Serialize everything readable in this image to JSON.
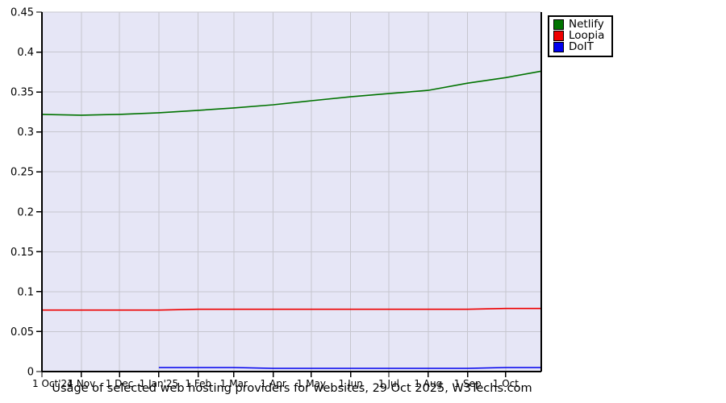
{
  "page": {
    "background": "#ffffff"
  },
  "chart_data": {
    "type": "line",
    "title": "Usage of selected web hosting providers for websites, 29 Oct 2025, W3Techs.com",
    "x_tick_labels": [
      "1 Oct'24",
      "1 Nov",
      "1 Dec",
      "1 Jan'25",
      "1 Feb",
      "1 Mar",
      "1 Apr",
      "1 May",
      "1 Jun",
      "1 Jul",
      "1 Aug",
      "1 Sep",
      "1 Oct"
    ],
    "x_days": [
      0,
      31,
      61,
      92,
      123,
      151,
      182,
      212,
      243,
      273,
      304,
      335,
      365,
      393
    ],
    "x_max": 393,
    "ylim": [
      0,
      0.45
    ],
    "y_tick_labels": [
      "0",
      "0.05",
      "0.1",
      "0.15",
      "0.2",
      "0.25",
      "0.3",
      "0.35",
      "0.4",
      "0.45"
    ],
    "y_step": 0.05,
    "grid": true,
    "legend_position": "top-right-outside",
    "colors": {
      "plot_bg": "#e6e6f6",
      "grid": "#c6c6ce",
      "axis": "#000000",
      "text": "#000000"
    },
    "series": [
      {
        "name": "Netlify",
        "color": "#007300",
        "values": [
          0.322,
          0.321,
          0.322,
          0.324,
          0.327,
          0.33,
          0.334,
          0.339,
          0.344,
          0.348,
          0.352,
          0.361,
          0.368,
          0.376
        ]
      },
      {
        "name": "Loopia",
        "color": "#ee0000",
        "values": [
          0.077,
          0.077,
          0.077,
          0.077,
          0.078,
          0.078,
          0.078,
          0.078,
          0.078,
          0.078,
          0.078,
          0.078,
          0.079,
          0.079
        ]
      },
      {
        "name": "DoIT",
        "color": "#0000ee",
        "values": [
          null,
          null,
          null,
          0.005,
          0.005,
          0.005,
          0.004,
          0.004,
          0.004,
          0.004,
          0.004,
          0.004,
          0.005,
          0.005
        ]
      }
    ]
  }
}
